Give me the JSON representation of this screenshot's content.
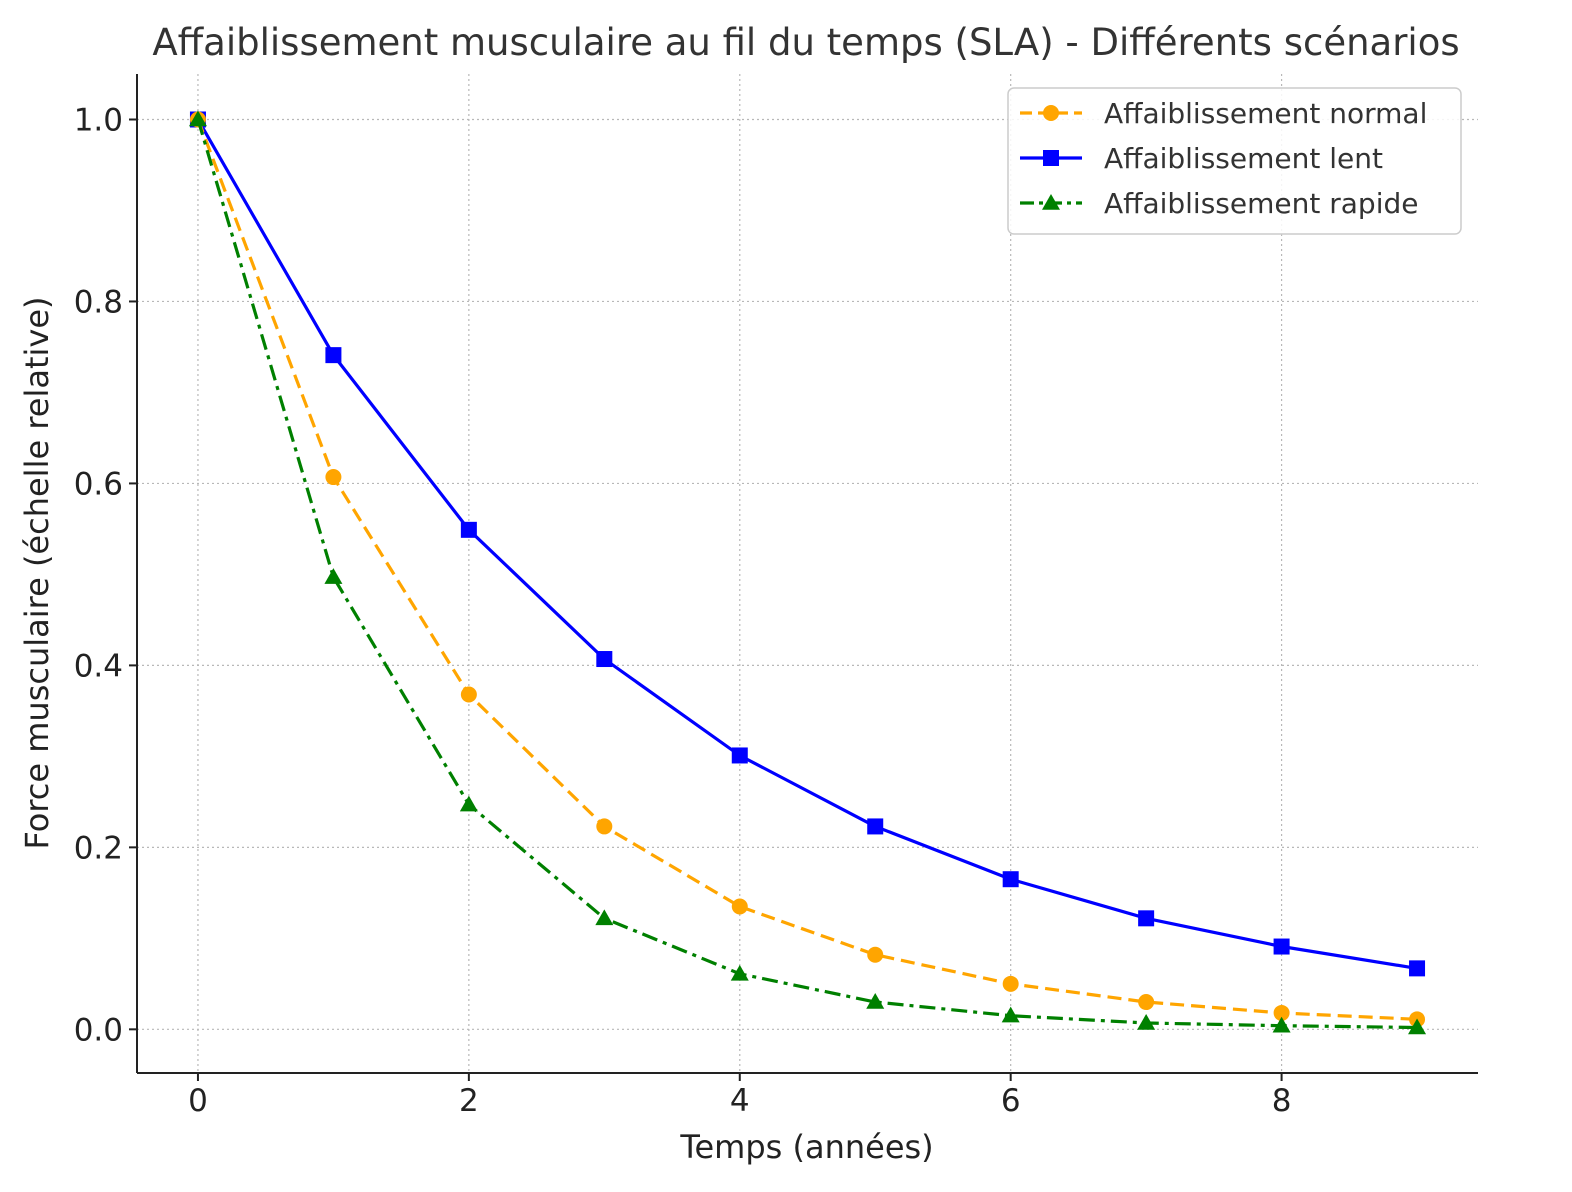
{
  "chart_data": {
    "type": "line",
    "title": "Affaiblissement musculaire au fil du temps (SLA) - Différents scénarios",
    "xlabel": "Temps (années)",
    "ylabel": "Force musculaire (échelle relative)",
    "xlim": [
      -0.45,
      9.45
    ],
    "ylim": [
      -0.048,
      1.05
    ],
    "xticks": [
      0,
      2,
      4,
      6,
      8
    ],
    "yticks": [
      0.0,
      0.2,
      0.4,
      0.6,
      0.8,
      1.0
    ],
    "xtick_labels": [
      "0",
      "2",
      "4",
      "6",
      "8"
    ],
    "ytick_labels": [
      "0.0",
      "0.2",
      "0.4",
      "0.6",
      "0.8",
      "1.0"
    ],
    "grid": true,
    "legend_position": "top-right",
    "x": [
      0,
      1,
      2,
      3,
      4,
      5,
      6,
      7,
      8,
      9
    ],
    "series": [
      {
        "name": "Affaiblissement normal",
        "color": "#FFA500",
        "line_style": "dashed",
        "marker": "circle",
        "values": [
          1.0,
          0.607,
          0.368,
          0.223,
          0.135,
          0.082,
          0.05,
          0.03,
          0.018,
          0.011
        ]
      },
      {
        "name": "Affaiblissement lent",
        "color": "#0000FF",
        "line_style": "solid",
        "marker": "square",
        "values": [
          1.0,
          0.741,
          0.549,
          0.407,
          0.301,
          0.223,
          0.165,
          0.122,
          0.091,
          0.067
        ]
      },
      {
        "name": "Affaiblissement rapide",
        "color": "#008000",
        "line_style": "dashdot",
        "marker": "triangle",
        "values": [
          1.0,
          0.497,
          0.247,
          0.122,
          0.061,
          0.03,
          0.015,
          0.007,
          0.004,
          0.002
        ]
      }
    ]
  }
}
